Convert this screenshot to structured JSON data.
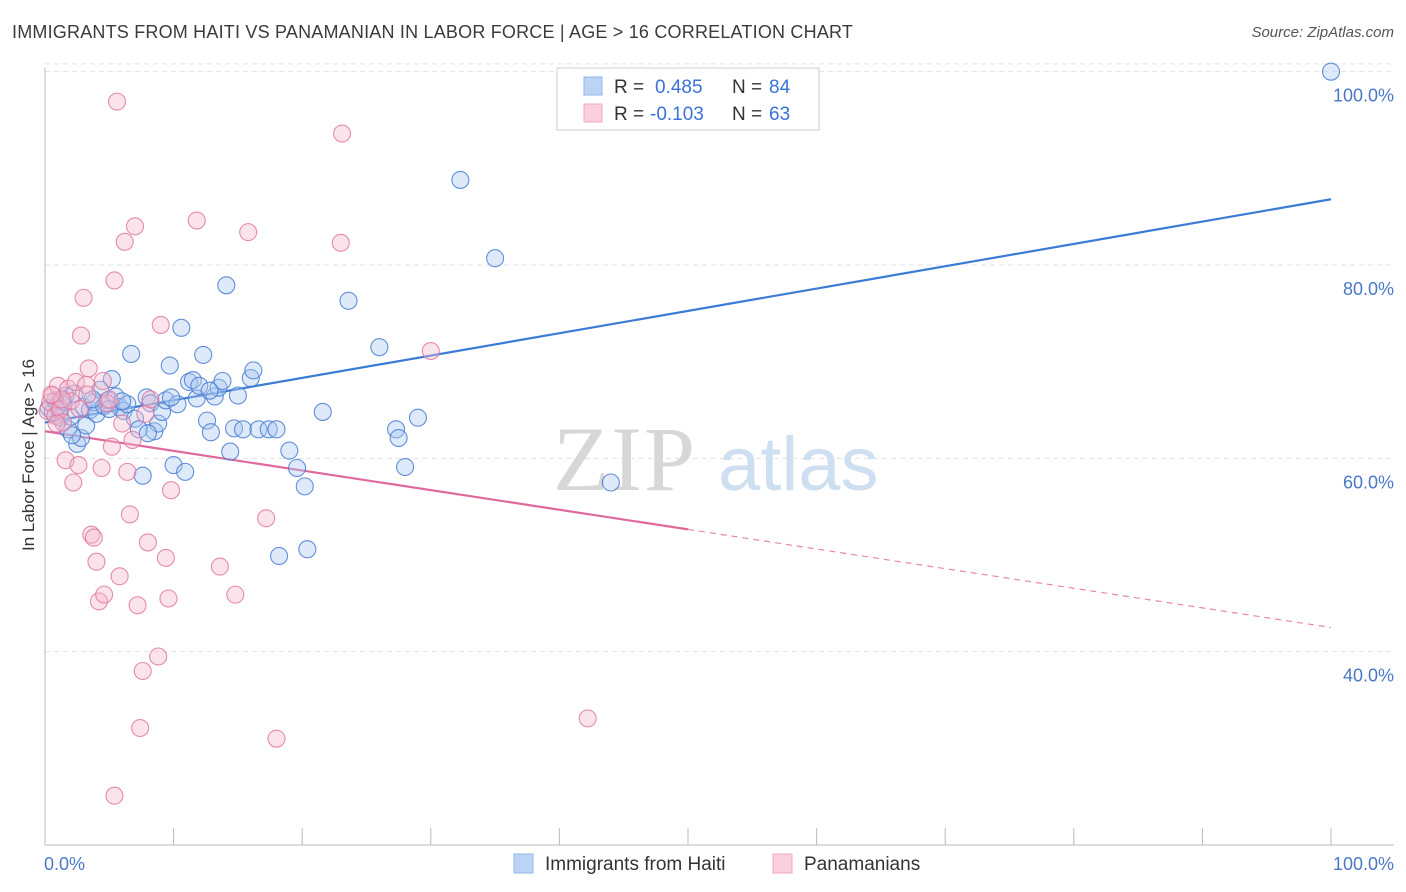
{
  "title": "IMMIGRANTS FROM HAITI VS PANAMANIAN IN LABOR FORCE | AGE > 16 CORRELATION CHART",
  "source": "Source: ZipAtlas.com",
  "watermark": {
    "zip": "ZIP",
    "atlas": "atlas"
  },
  "legend": {
    "r_label": "R =",
    "n_label": "N =",
    "rows": [
      {
        "r": "0.485",
        "n": "84",
        "color": "#8fb6ec"
      },
      {
        "r": "-0.103",
        "n": "63",
        "color": "#f2a7c0"
      }
    ]
  },
  "bottom_legend": [
    {
      "label": "Immigrants from Haiti",
      "color": "#8fb6ec"
    },
    {
      "label": "Panamanians",
      "color": "#f2a7c0"
    }
  ],
  "colors": {
    "blue": "#3b7bd6",
    "pink": "#e0689a",
    "grid": "#e2e2e2",
    "axis_text": "#4a78c8"
  },
  "chart_data": {
    "type": "scatter",
    "title": "IMMIGRANTS FROM HAITI VS PANAMANIAN IN LABOR FORCE | AGE > 16 CORRELATION CHART",
    "xlabel": "",
    "ylabel": "In Labor Force | Age > 16",
    "xlim": [
      0,
      100
    ],
    "ylim": [
      20,
      101
    ],
    "x_tick_labels": [
      "0.0%",
      "100.0%"
    ],
    "y_ticks": [
      40,
      60,
      80,
      100
    ],
    "y_tick_labels": [
      "40.0%",
      "60.0%",
      "80.0%",
      "100.0%"
    ],
    "grid": true,
    "legend_position": "top-center",
    "series": [
      {
        "name": "Immigrants from Haiti",
        "color": "#8fb6ec",
        "trend": {
          "x0": 0,
          "y0": 63.7,
          "x1": 100,
          "y1": 86.8,
          "dashed_from": null
        },
        "points": [
          [
            0.3,
            65.2
          ],
          [
            0.6,
            64.8
          ],
          [
            0.8,
            66.0
          ],
          [
            1.0,
            65.5
          ],
          [
            1.2,
            64.2
          ],
          [
            1.4,
            65.9
          ],
          [
            1.6,
            66.5
          ],
          [
            1.8,
            63.0
          ],
          [
            2.0,
            64.3
          ],
          [
            2.3,
            66.7
          ],
          [
            2.5,
            61.5
          ],
          [
            2.8,
            62.1
          ],
          [
            3.0,
            65.3
          ],
          [
            3.2,
            63.4
          ],
          [
            3.5,
            65.0
          ],
          [
            3.8,
            65.8
          ],
          [
            4.0,
            64.6
          ],
          [
            4.3,
            67.1
          ],
          [
            4.6,
            65.4
          ],
          [
            4.9,
            66.0
          ],
          [
            5.2,
            68.2
          ],
          [
            5.5,
            66.4
          ],
          [
            5.8,
            65.3
          ],
          [
            6.1,
            64.9
          ],
          [
            6.4,
            65.6
          ],
          [
            6.7,
            70.8
          ],
          [
            7.0,
            64.1
          ],
          [
            7.3,
            63.0
          ],
          [
            7.6,
            58.2
          ],
          [
            7.9,
            66.3
          ],
          [
            8.2,
            65.7
          ],
          [
            8.5,
            62.8
          ],
          [
            8.8,
            63.6
          ],
          [
            9.1,
            64.8
          ],
          [
            9.4,
            66.0
          ],
          [
            9.7,
            69.6
          ],
          [
            10.0,
            59.3
          ],
          [
            10.3,
            65.6
          ],
          [
            10.6,
            73.5
          ],
          [
            10.9,
            58.6
          ],
          [
            11.2,
            67.9
          ],
          [
            11.5,
            68.1
          ],
          [
            11.8,
            66.2
          ],
          [
            12.0,
            67.5
          ],
          [
            12.3,
            70.7
          ],
          [
            12.6,
            63.9
          ],
          [
            12.9,
            62.7
          ],
          [
            13.2,
            66.4
          ],
          [
            13.5,
            67.3
          ],
          [
            13.8,
            68.0
          ],
          [
            14.1,
            77.9
          ],
          [
            14.4,
            60.7
          ],
          [
            14.7,
            63.1
          ],
          [
            15.0,
            66.5
          ],
          [
            15.4,
            63.0
          ],
          [
            16.0,
            68.3
          ],
          [
            16.2,
            69.1
          ],
          [
            16.6,
            63.0
          ],
          [
            17.4,
            63.0
          ],
          [
            18.0,
            63.0
          ],
          [
            18.2,
            49.9
          ],
          [
            19.0,
            60.8
          ],
          [
            19.6,
            59.0
          ],
          [
            20.2,
            57.1
          ],
          [
            20.4,
            50.6
          ],
          [
            21.6,
            64.8
          ],
          [
            23.6,
            76.3
          ],
          [
            26.0,
            71.5
          ],
          [
            27.3,
            63.0
          ],
          [
            27.5,
            62.1
          ],
          [
            28.0,
            59.1
          ],
          [
            29.0,
            64.2
          ],
          [
            32.3,
            88.8
          ],
          [
            35.0,
            80.7
          ],
          [
            44.0,
            57.5
          ],
          [
            100.0,
            100.0
          ],
          [
            1.1,
            65.0
          ],
          [
            2.1,
            62.4
          ],
          [
            3.7,
            66.1
          ],
          [
            5.0,
            65.1
          ],
          [
            6.0,
            65.9
          ],
          [
            8.0,
            62.6
          ],
          [
            9.8,
            66.3
          ],
          [
            12.8,
            67.0
          ]
        ]
      },
      {
        "name": "Panamanians",
        "color": "#f2a7c0",
        "trend": {
          "x0": 0,
          "y0": 62.8,
          "x1": 100,
          "y1": 42.5,
          "dashed_from": 50
        },
        "points": [
          [
            0.2,
            64.9
          ],
          [
            0.4,
            65.8
          ],
          [
            0.6,
            66.5
          ],
          [
            0.8,
            64.4
          ],
          [
            1.0,
            67.5
          ],
          [
            1.2,
            65.1
          ],
          [
            1.4,
            63.7
          ],
          [
            1.6,
            59.8
          ],
          [
            1.8,
            67.2
          ],
          [
            2.0,
            65.9
          ],
          [
            2.2,
            57.5
          ],
          [
            2.4,
            67.9
          ],
          [
            2.6,
            59.3
          ],
          [
            2.8,
            72.7
          ],
          [
            3.0,
            76.6
          ],
          [
            3.2,
            67.6
          ],
          [
            3.4,
            69.3
          ],
          [
            3.6,
            52.1
          ],
          [
            3.8,
            51.8
          ],
          [
            4.0,
            49.3
          ],
          [
            4.2,
            45.2
          ],
          [
            4.4,
            59.0
          ],
          [
            4.6,
            45.9
          ],
          [
            4.8,
            65.7
          ],
          [
            5.0,
            66.1
          ],
          [
            5.2,
            61.2
          ],
          [
            5.4,
            78.4
          ],
          [
            5.6,
            96.9
          ],
          [
            5.8,
            47.8
          ],
          [
            6.0,
            63.6
          ],
          [
            6.2,
            82.4
          ],
          [
            6.4,
            58.6
          ],
          [
            6.6,
            54.2
          ],
          [
            6.8,
            61.9
          ],
          [
            7.0,
            84.0
          ],
          [
            7.2,
            44.8
          ],
          [
            7.4,
            32.1
          ],
          [
            7.6,
            38.0
          ],
          [
            7.8,
            64.6
          ],
          [
            8.0,
            51.3
          ],
          [
            8.2,
            66.1
          ],
          [
            8.8,
            39.5
          ],
          [
            9.0,
            73.8
          ],
          [
            9.4,
            49.7
          ],
          [
            9.6,
            45.5
          ],
          [
            9.8,
            56.7
          ],
          [
            11.8,
            84.6
          ],
          [
            13.6,
            48.8
          ],
          [
            14.8,
            45.9
          ],
          [
            15.8,
            83.4
          ],
          [
            17.2,
            53.8
          ],
          [
            18.0,
            31.0
          ],
          [
            23.0,
            82.3
          ],
          [
            23.1,
            93.6
          ],
          [
            30.0,
            71.1
          ],
          [
            42.2,
            33.1
          ],
          [
            5.4,
            25.1
          ],
          [
            1.3,
            66.1
          ],
          [
            2.7,
            65.1
          ],
          [
            0.9,
            63.6
          ],
          [
            3.3,
            66.6
          ],
          [
            4.5,
            68.0
          ],
          [
            0.5,
            66.6
          ]
        ]
      }
    ]
  }
}
